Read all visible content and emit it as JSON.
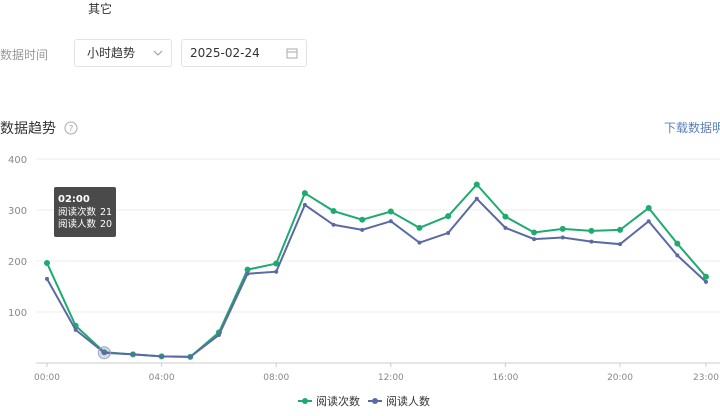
{
  "tab": "其它",
  "filter": {
    "label": "数据时间",
    "mode": "小时趋势",
    "date": "2025-02-24"
  },
  "section": {
    "title": "数据趋势",
    "download": "下载数据明细"
  },
  "chart_data": {
    "type": "line",
    "categories": [
      "00:00",
      null,
      null,
      null,
      "04:00",
      null,
      null,
      null,
      "08:00",
      null,
      null,
      null,
      "12:00",
      null,
      null,
      null,
      "16:00",
      null,
      null,
      null,
      "20:00",
      null,
      null,
      "23:00"
    ],
    "series": [
      {
        "name": "阅读次数",
        "color": "#1fab70",
        "values": [
          196,
          73,
          21,
          17,
          13,
          12,
          60,
          183,
          195,
          333,
          298,
          281,
          297,
          265,
          288,
          350,
          287,
          256,
          263,
          259,
          261,
          304,
          234,
          169
        ]
      },
      {
        "name": "阅读人数",
        "color": "#5b6aa3",
        "values": [
          165,
          65,
          20,
          17,
          13,
          12,
          55,
          175,
          179,
          310,
          271,
          261,
          278,
          236,
          255,
          322,
          265,
          243,
          246,
          238,
          233,
          278,
          211,
          159
        ]
      }
    ],
    "ylim": [
      0,
      400
    ],
    "yticks": [
      100,
      200,
      300,
      400
    ],
    "grid": true,
    "legend": "bottom",
    "tooltip": {
      "title": "02:00"
    }
  }
}
